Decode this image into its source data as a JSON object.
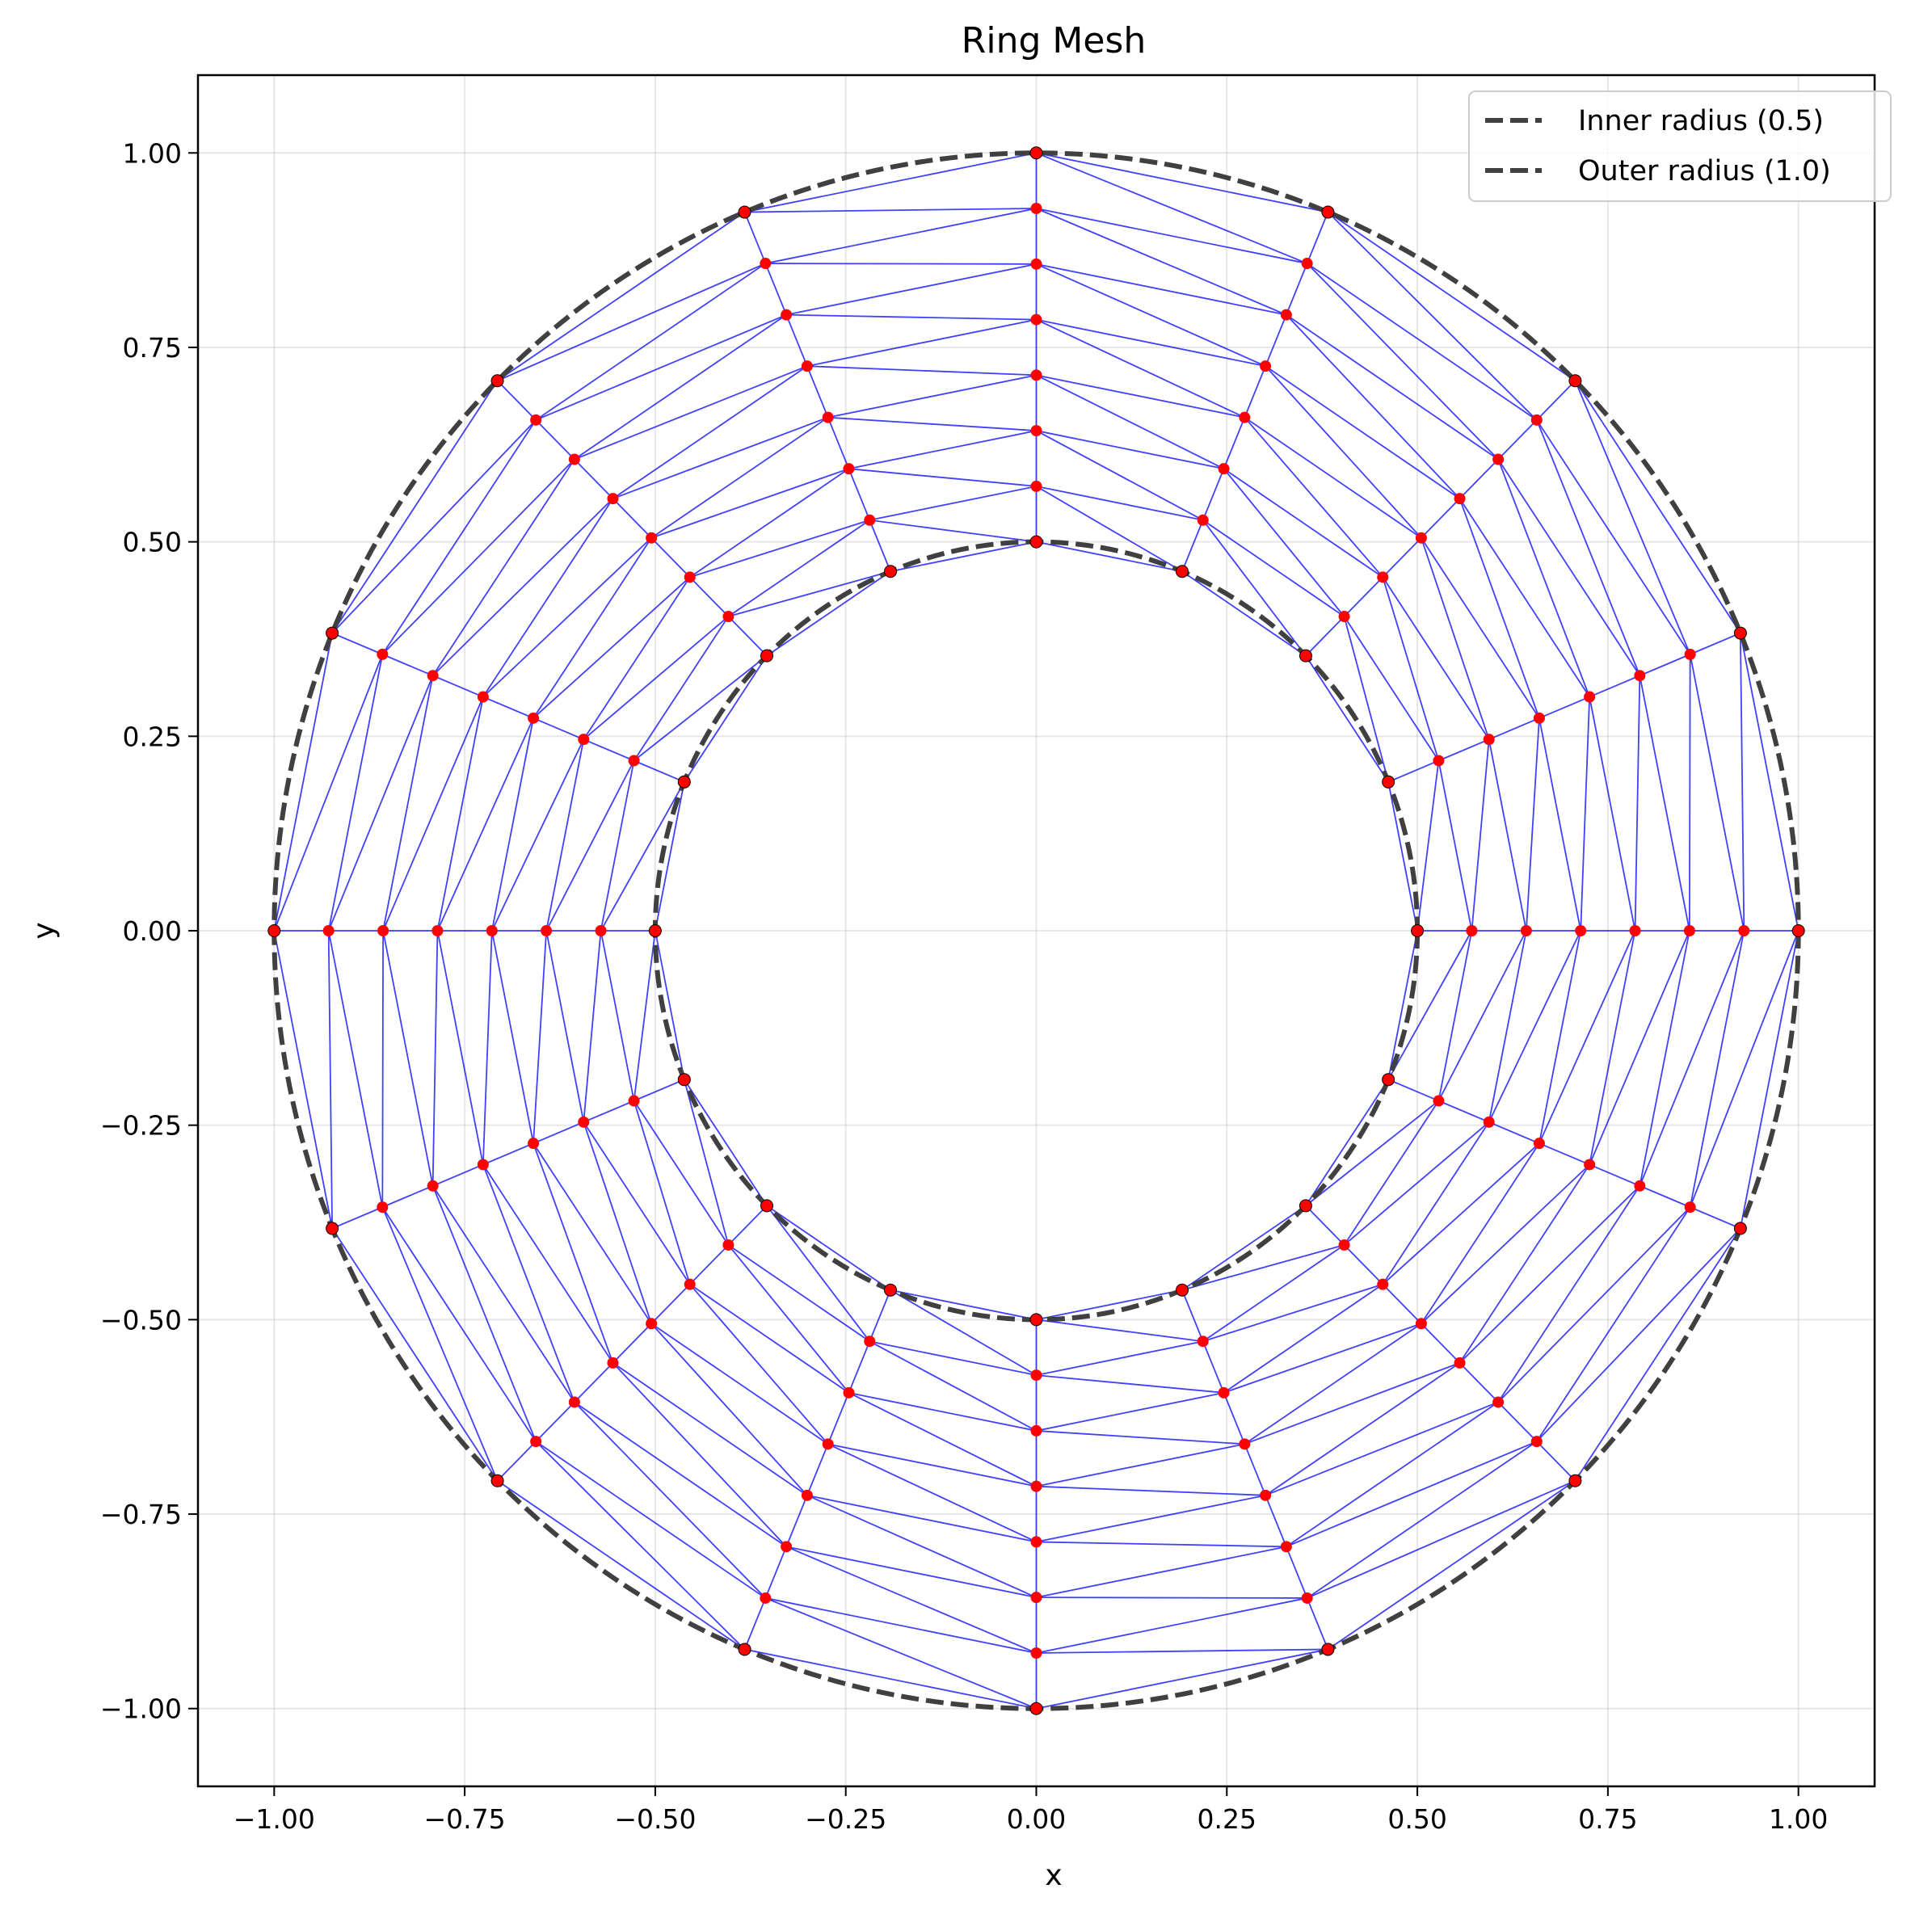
{
  "chart_data": {
    "type": "scatter",
    "title": "Ring Mesh",
    "xlabel": "x",
    "ylabel": "y",
    "xlim": [
      -1.1,
      1.1
    ],
    "ylim": [
      -1.1,
      1.1
    ],
    "grid": true,
    "legend_position": "top-right",
    "x_ticks": [
      "−1.00",
      "−0.75",
      "−0.50",
      "−0.25",
      "0.00",
      "0.25",
      "0.50",
      "0.75",
      "1.00"
    ],
    "x_tick_values": [
      -1.0,
      -0.75,
      -0.5,
      -0.25,
      0.0,
      0.25,
      0.5,
      0.75,
      1.0
    ],
    "y_ticks": [
      "−1.00",
      "−0.75",
      "−0.50",
      "−0.25",
      "0.00",
      "0.25",
      "0.50",
      "0.75",
      "1.00"
    ],
    "y_tick_values": [
      -1.0,
      -0.75,
      -0.5,
      -0.25,
      0.0,
      0.25,
      0.5,
      0.75,
      1.0
    ],
    "mesh": {
      "inner_radius": 0.5,
      "outer_radius": 1.0,
      "radial_layers": [
        0.5,
        0.5714,
        0.6429,
        0.7143,
        0.7857,
        0.8571,
        0.9286,
        1.0
      ],
      "angular_divisions": 16,
      "point_color": "#ff0000",
      "edge_color": "#0000ff"
    },
    "series": [
      {
        "name": "Inner radius (0.5)",
        "radius": 0.5,
        "style": "dashed",
        "color": "#404040"
      },
      {
        "name": "Outer radius (1.0)",
        "radius": 1.0,
        "style": "dashed",
        "color": "#404040"
      }
    ]
  }
}
